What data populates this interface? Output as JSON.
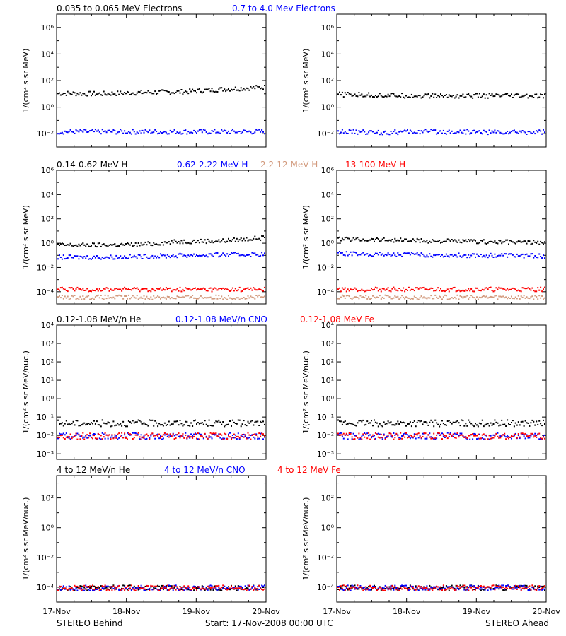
{
  "colors": {
    "black": "#000000",
    "blue": "#0000ff",
    "red": "#ff0000",
    "salmon": "#d29a7d",
    "purple": "#7a1a8a"
  },
  "footer": {
    "left": "STEREO Behind",
    "center": "Start: 17-Nov-2008 00:00 UTC",
    "right": "STEREO Ahead"
  },
  "x_ticks": [
    "17-Nov",
    "18-Nov",
    "19-Nov",
    "20-Nov"
  ],
  "chart_data": [
    {
      "type": "scatter",
      "id": "electrons",
      "titles": [
        {
          "text": "0.035 to 0.065 MeV Electrons",
          "color": "#000000"
        },
        {
          "text": "0.7 to 4.0 Mev Electrons",
          "color": "#0000ff"
        }
      ],
      "ylabel": "1/(cm² s sr MeV)",
      "yscale": "log",
      "ylim_log10": [
        -3,
        7
      ],
      "ytick_exponents": [
        -2,
        0,
        2,
        4,
        6
      ],
      "x": [
        "17-Nov",
        "18-Nov",
        "19-Nov",
        "20-Nov"
      ],
      "behind": [
        {
          "name": "0.035 to 0.065 MeV Electrons",
          "color": "#000000",
          "log10": [
            1.1,
            1.05,
            1.15,
            1.2,
            1.4,
            1.55
          ]
        },
        {
          "name": "0.7 to 4.0 Mev Electrons",
          "color": "#0000ff",
          "log10": [
            -1.8,
            -1.8,
            -1.8,
            -1.8,
            -1.8,
            -1.8
          ]
        }
      ],
      "ahead": [
        {
          "name": "0.035 to 0.065 MeV Electrons",
          "color": "#000000",
          "log10": [
            1.0,
            0.95,
            0.9,
            0.9,
            0.9,
            0.85
          ]
        },
        {
          "name": "0.7 to 4.0 Mev Electrons",
          "color": "#0000ff",
          "log10": [
            -1.8,
            -1.85,
            -1.8,
            -1.8,
            -1.85,
            -1.8
          ]
        }
      ]
    },
    {
      "type": "scatter",
      "id": "protons",
      "titles": [
        {
          "text": "0.14-0.62 MeV H",
          "color": "#000000"
        },
        {
          "text": "0.62-2.22 MeV H",
          "color": "#0000ff"
        },
        {
          "text": "2.2-12 MeV H",
          "color": "#d29a7d"
        },
        {
          "text": "13-100 MeV H",
          "color": "#ff0000"
        }
      ],
      "ylabel": "1/(cm² s sr MeV)",
      "yscale": "log",
      "ylim_log10": [
        -5,
        6
      ],
      "ytick_exponents": [
        -4,
        -2,
        0,
        2,
        4,
        6
      ],
      "x": [
        "17-Nov",
        "18-Nov",
        "19-Nov",
        "20-Nov"
      ],
      "behind": [
        {
          "name": "0.14-0.62 MeV H",
          "color": "#000000",
          "log10": [
            -0.1,
            -0.1,
            -0.05,
            0.2,
            0.25,
            0.5
          ]
        },
        {
          "name": "0.62-2.22 MeV H",
          "color": "#0000ff",
          "log10": [
            -1.1,
            -1.1,
            -1.05,
            -0.95,
            -0.9,
            -0.85
          ]
        },
        {
          "name": "2.2-12 MeV H",
          "color": "#d29a7d",
          "log10": [
            -4.4,
            -4.4,
            -4.4,
            -4.4,
            -4.4,
            -4.4
          ]
        },
        {
          "name": "13-100 MeV H",
          "color": "#ff0000",
          "log10": [
            -3.75,
            -3.75,
            -3.75,
            -3.75,
            -3.75,
            -3.75
          ]
        }
      ],
      "ahead": [
        {
          "name": "0.14-0.62 MeV H",
          "color": "#000000",
          "log10": [
            0.4,
            0.35,
            0.25,
            0.2,
            0.15,
            0.1
          ]
        },
        {
          "name": "0.62-2.22 MeV H",
          "color": "#0000ff",
          "log10": [
            -0.8,
            -0.85,
            -0.9,
            -0.95,
            -0.95,
            -1.0
          ]
        },
        {
          "name": "2.2-12 MeV H",
          "color": "#d29a7d",
          "log10": [
            -4.4,
            -4.4,
            -4.4,
            -4.4,
            -4.4,
            -4.4
          ]
        },
        {
          "name": "13-100 MeV H",
          "color": "#ff0000",
          "log10": [
            -3.75,
            -3.75,
            -3.75,
            -3.75,
            -3.75,
            -3.75
          ]
        }
      ]
    },
    {
      "type": "scatter",
      "id": "low-energy-ions",
      "titles": [
        {
          "text": "0.12-1.08 MeV/n He",
          "color": "#000000"
        },
        {
          "text": "0.12-1.08 MeV/n CNO",
          "color": "#0000ff"
        },
        {
          "text": "0.12-1.08 MeV Fe",
          "color": "#ff0000"
        }
      ],
      "ylabel": "1/(cm² s sr MeV/nuc.)",
      "yscale": "log",
      "ylim_log10": [
        -3.3,
        4
      ],
      "ytick_exponents": [
        -3,
        -2,
        -1,
        0,
        1,
        2,
        3,
        4
      ],
      "x": [
        "17-Nov",
        "18-Nov",
        "19-Nov",
        "20-Nov"
      ],
      "behind": [
        {
          "name": "0.12-1.08 MeV/n He",
          "color": "#000000",
          "log10": [
            -1.3,
            -1.3,
            -1.3,
            -1.3,
            -1.3,
            -1.3
          ]
        },
        {
          "name": "0.12-1.08 MeV/n CNO",
          "color": "#0000ff",
          "log10": [
            -2.0,
            -2.0,
            -2.0,
            -2.0,
            -2.0,
            -2.0
          ]
        },
        {
          "name": "0.12-1.08 MeV Fe",
          "color": "#ff0000",
          "log10": [
            -2.0,
            -2.0,
            -2.0,
            -2.0,
            -2.0,
            -2.0
          ]
        }
      ],
      "ahead": [
        {
          "name": "0.12-1.08 MeV/n He",
          "color": "#000000",
          "log10": [
            -1.3,
            -1.3,
            -1.3,
            -1.3,
            -1.3,
            -1.3
          ]
        },
        {
          "name": "0.12-1.08 MeV/n CNO",
          "color": "#0000ff",
          "log10": [
            -2.0,
            -2.0,
            -2.0,
            -2.0,
            -2.0,
            -2.0
          ]
        },
        {
          "name": "0.12-1.08 MeV Fe",
          "color": "#ff0000",
          "log10": [
            -2.0,
            -2.0,
            -2.0,
            -2.0,
            -2.0,
            -2.0
          ]
        }
      ]
    },
    {
      "type": "scatter",
      "id": "high-energy-ions",
      "titles": [
        {
          "text": "4 to 12 MeV/n He",
          "color": "#000000"
        },
        {
          "text": "4 to 12 MeV/n CNO",
          "color": "#0000ff"
        },
        {
          "text": "4 to 12 MeV Fe",
          "color": "#ff0000"
        }
      ],
      "ylabel": "1/(cm² s sr MeV/nuc.)",
      "yscale": "log",
      "ylim_log10": [
        -5,
        3.5
      ],
      "ytick_exponents": [
        -4,
        -2,
        0,
        2
      ],
      "x": [
        "17-Nov",
        "18-Nov",
        "19-Nov",
        "20-Nov"
      ],
      "behind": [
        {
          "name": "4 to 12 MeV/n He",
          "color": "#000000",
          "log10": [
            -4.0,
            -4.0,
            -4.0,
            -4.0,
            -4.0,
            -4.0
          ]
        },
        {
          "name": "4 to 12 MeV/n CNO",
          "color": "#0000ff",
          "log10": [
            -4.0,
            -4.0,
            -4.0,
            -4.0,
            -4.0,
            -4.0
          ]
        },
        {
          "name": "4 to 12 MeV Fe",
          "color": "#ff0000",
          "log10": [
            -4.0,
            -4.0,
            -4.0,
            -4.0,
            -4.0,
            -4.0
          ]
        }
      ],
      "ahead": [
        {
          "name": "4 to 12 MeV/n He",
          "color": "#000000",
          "log10": [
            -4.0,
            -4.0,
            -4.0,
            -4.0,
            -4.0,
            -4.0
          ]
        },
        {
          "name": "4 to 12 MeV/n CNO",
          "color": "#0000ff",
          "log10": [
            -4.0,
            -4.0,
            -4.0,
            -4.0,
            -4.0,
            -4.0
          ]
        },
        {
          "name": "4 to 12 MeV Fe",
          "color": "#ff0000",
          "log10": [
            -4.0,
            -4.0,
            -4.0,
            -4.0,
            -4.0,
            -4.0
          ]
        }
      ]
    }
  ]
}
